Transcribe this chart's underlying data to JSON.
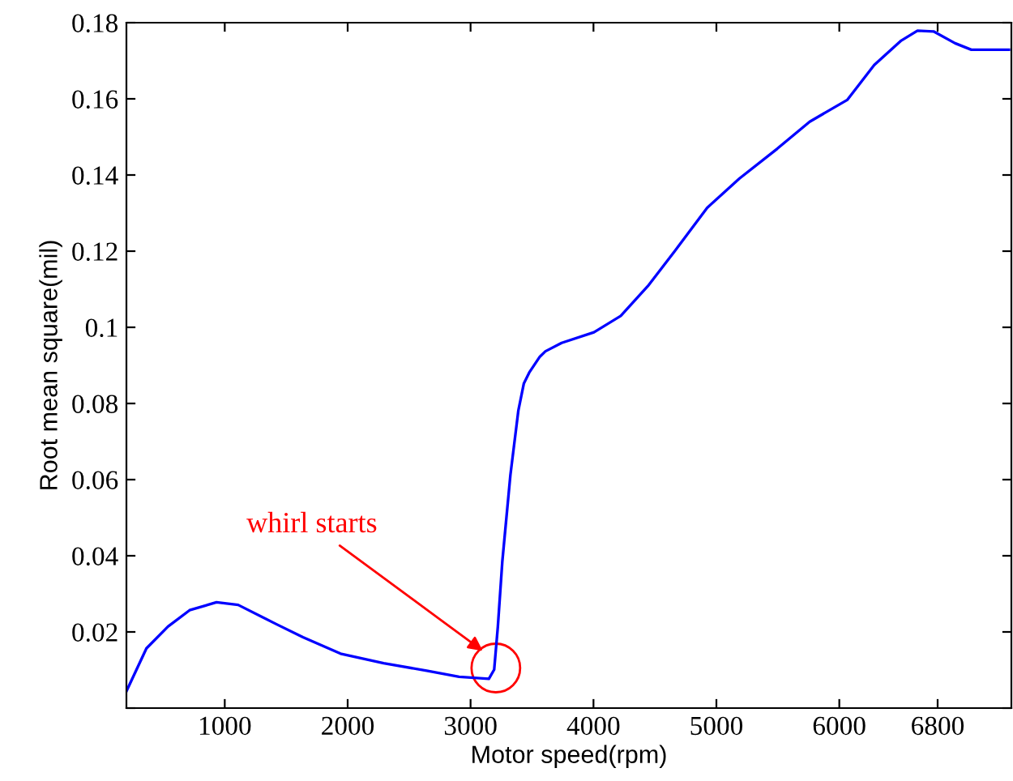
{
  "chart_data": {
    "type": "line",
    "xlabel": "Motor speed(rpm)",
    "ylabel": "Root mean square(mil)",
    "xlim": [
      200,
      7400
    ],
    "xticks": [
      1000,
      2000,
      3000,
      4000,
      5000,
      6000,
      6800
    ],
    "ylim": [
      0,
      0.18
    ],
    "yticks": [
      {
        "value": 0,
        "label": null
      },
      0.02,
      0.04,
      0.06,
      0.08,
      0.1,
      0.12,
      0.14,
      0.16,
      0.18
    ],
    "grid": false,
    "legend": false,
    "marker": "none",
    "line_style": "solid",
    "annotations": [
      {
        "text": "whirl starts",
        "x": 3100,
        "y": 0.015
      }
    ],
    "series": [
      {
        "color": "#0000ff",
        "x": [
          200,
          363,
          538,
          714,
          933,
          1109,
          1416,
          1636,
          1942,
          2293,
          2643,
          2907,
          3149,
          3192,
          3222,
          3258,
          3324,
          3389,
          3433,
          3477,
          3564,
          3609,
          3741,
          4004,
          4222,
          4442,
          4661,
          4925,
          5188,
          5495,
          5759,
          6064,
          6284,
          6504,
          6636,
          6767,
          6942,
          7074,
          7380
        ],
        "values": [
          0.0044,
          0.0157,
          0.0214,
          0.0257,
          0.0278,
          0.0271,
          0.0221,
          0.0186,
          0.0143,
          0.0118,
          0.0098,
          0.0082,
          0.0077,
          0.0101,
          0.0214,
          0.0384,
          0.0612,
          0.0782,
          0.0852,
          0.0881,
          0.0923,
          0.0937,
          0.0959,
          0.0987,
          0.103,
          0.1108,
          0.12,
          0.1314,
          0.1391,
          0.1469,
          0.154,
          0.1597,
          0.1689,
          0.1753,
          0.1779,
          0.1777,
          0.1746,
          0.1729,
          0.1729
        ]
      }
    ]
  }
}
